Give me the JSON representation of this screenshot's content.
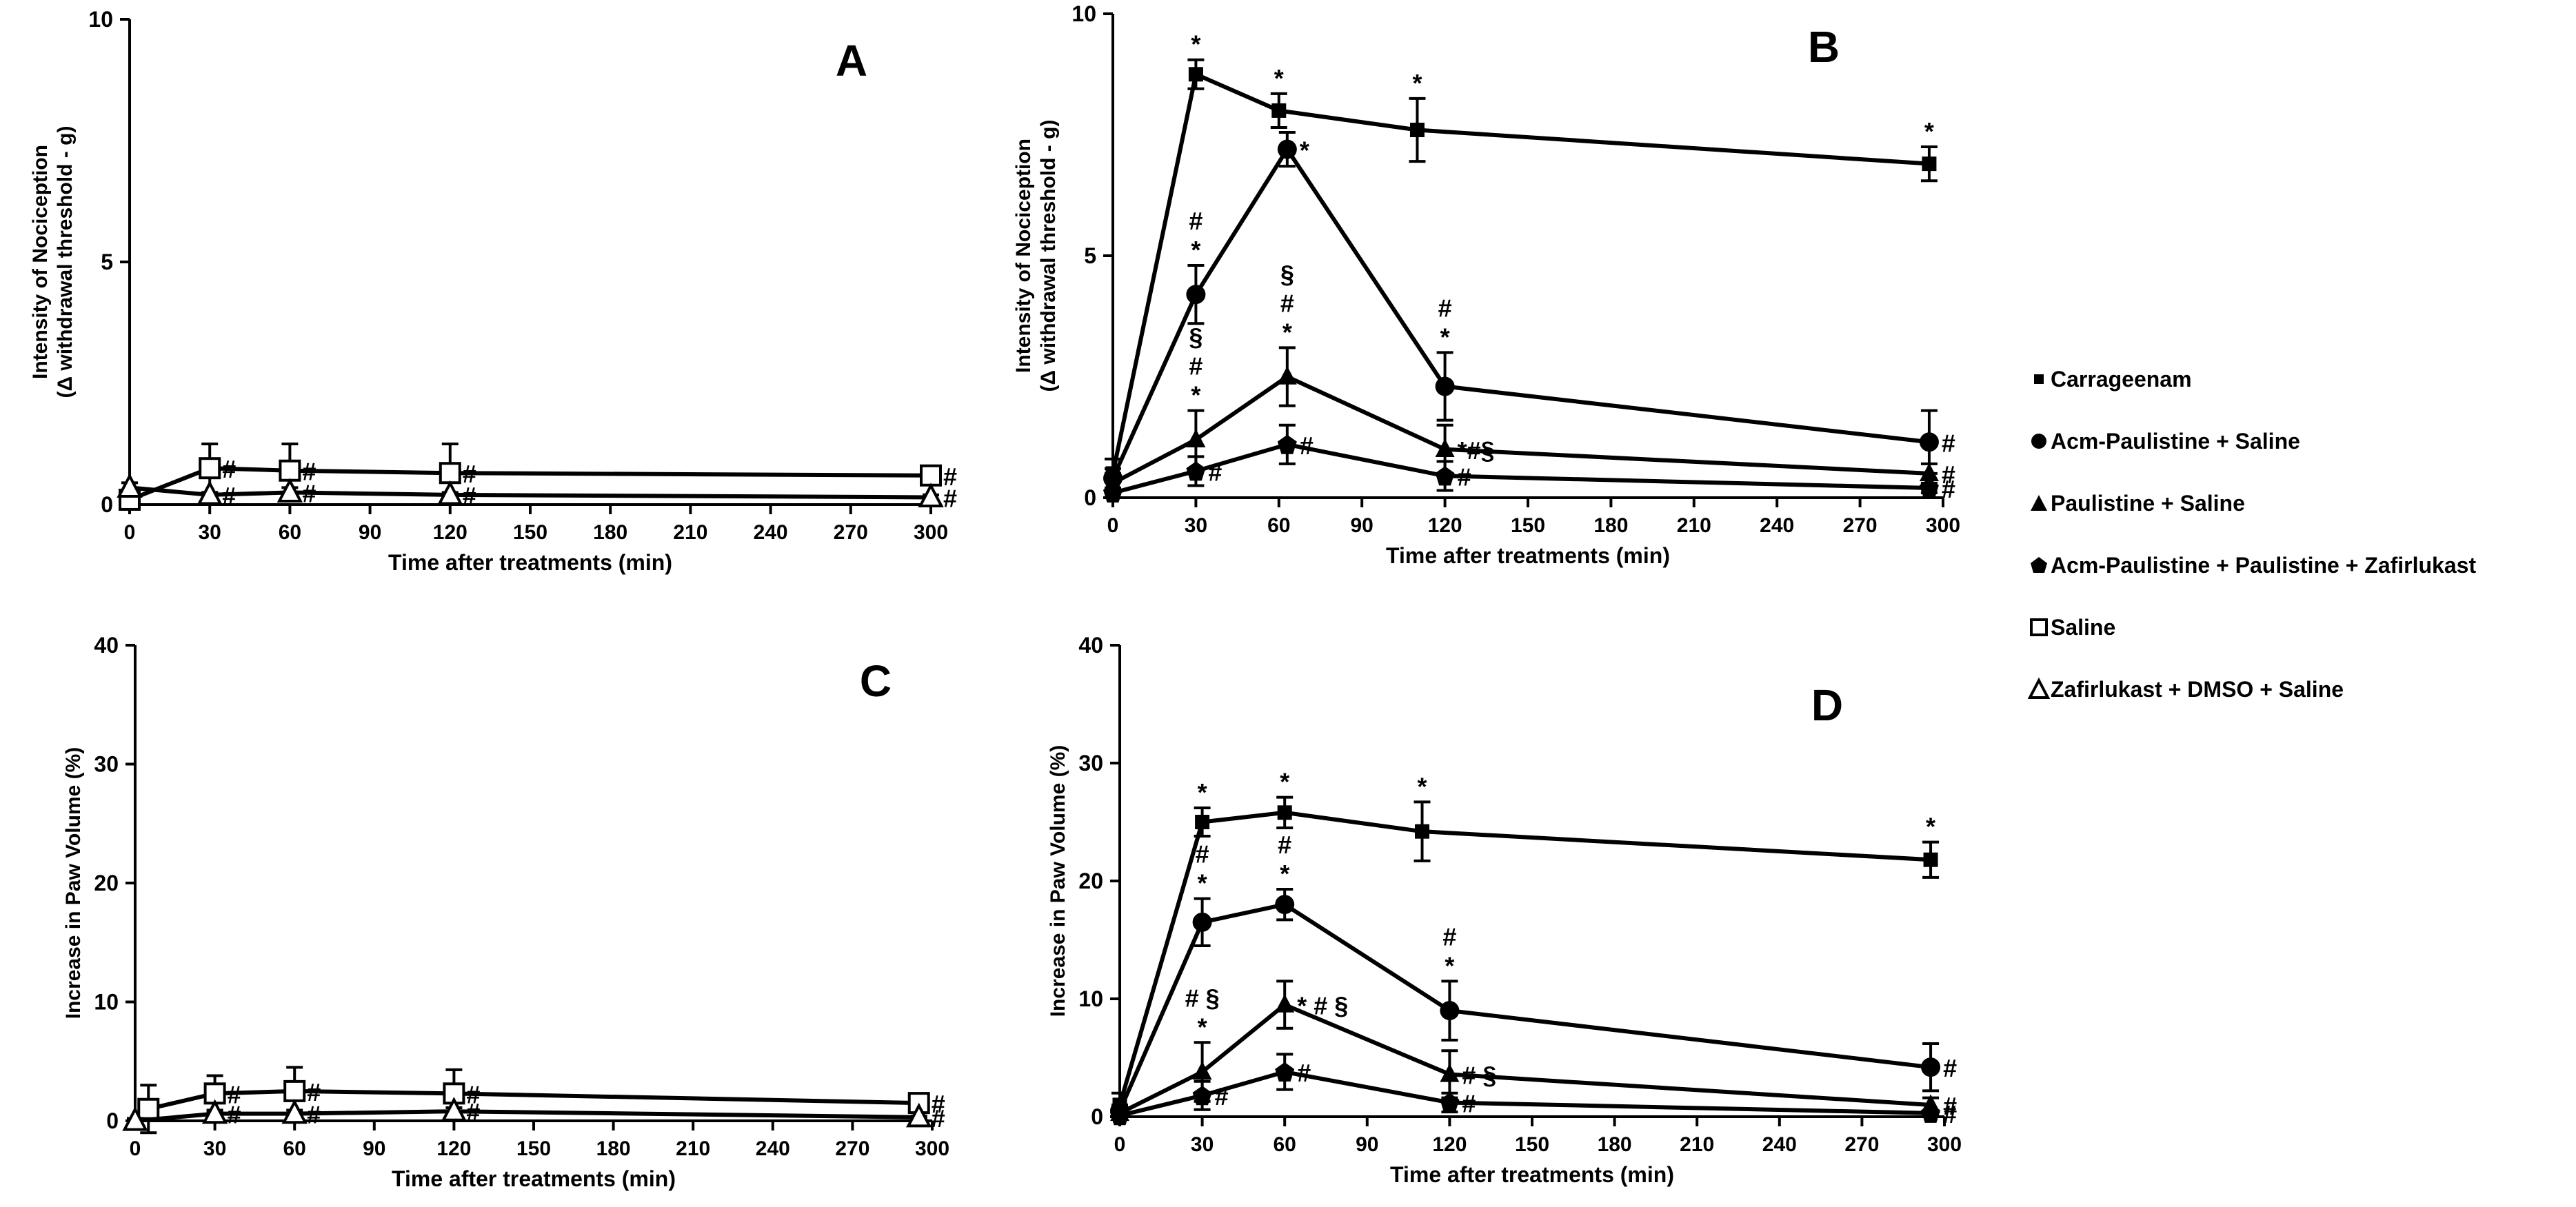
{
  "legend": {
    "series": [
      {
        "name": "Carrageenam",
        "marker": "square-filled"
      },
      {
        "name": "Acm-Paulistine + Saline",
        "marker": "circle-filled"
      },
      {
        "name": "Paulistine + Saline",
        "marker": "triangle-filled"
      },
      {
        "name": "Acm-Paulistine + Paulistine + Zafirlukast",
        "marker": "pentagon-filled"
      },
      {
        "name": "Saline",
        "marker": "square-open"
      },
      {
        "name": "Zafirlukast + DMSO + Saline",
        "marker": "triangle-open"
      }
    ]
  },
  "chart_data": [
    {
      "panel": "A",
      "type": "line",
      "xlabel": "Time after treatments (min)",
      "ylabel_lines": [
        "Intensity of Nociception",
        "(Δ withdrawal threshold - g)"
      ],
      "xlim": [
        0,
        300
      ],
      "ylim": [
        0,
        10
      ],
      "xticks": [
        "0",
        "30",
        "60",
        "90",
        "120",
        "150",
        "180",
        "210",
        "240",
        "270",
        "300"
      ],
      "yticks": [
        "0",
        "5",
        "10"
      ],
      "series": [
        {
          "name": "Saline",
          "marker": "square-open",
          "x": [
            0,
            30,
            60,
            120,
            300
          ],
          "y": [
            0.1,
            0.75,
            0.7,
            0.65,
            0.6
          ],
          "err": [
            0.1,
            0.5,
            0.55,
            0.6,
            0.1
          ],
          "labels": [
            "",
            "#",
            "#",
            "#",
            "#"
          ]
        },
        {
          "name": "Zafirlukast + DMSO + Saline",
          "marker": "triangle-open",
          "x": [
            0,
            30,
            60,
            120,
            300
          ],
          "y": [
            0.35,
            0.2,
            0.25,
            0.2,
            0.15
          ],
          "err": [
            0.1,
            0.05,
            0.1,
            0.05,
            0.05
          ],
          "labels": [
            "",
            "#",
            "#",
            "#",
            "#"
          ]
        }
      ]
    },
    {
      "panel": "B",
      "type": "line",
      "xlabel": "Time after treatments (min)",
      "ylabel_lines": [
        "Intensity of Nociception",
        "(Δ withdrawal threshold - g)"
      ],
      "xlim": [
        0,
        300
      ],
      "ylim": [
        0,
        10
      ],
      "xticks": [
        "0",
        "30",
        "60",
        "90",
        "120",
        "150",
        "180",
        "210",
        "240",
        "270",
        "300"
      ],
      "yticks": [
        "0",
        "5",
        "10"
      ],
      "series": [
        {
          "name": "Carrageenam",
          "marker": "square-filled",
          "x": [
            0,
            30,
            60,
            110,
            295
          ],
          "y": [
            0.5,
            8.75,
            8.0,
            7.6,
            6.9
          ],
          "err": [
            0.3,
            0.3,
            0.35,
            0.65,
            0.35
          ],
          "labels": [
            "",
            "*",
            "*",
            "*",
            "*"
          ]
        },
        {
          "name": "Acm-Paulistine + Saline",
          "marker": "circle-filled",
          "x": [
            0,
            30,
            63,
            120,
            295
          ],
          "y": [
            0.4,
            4.2,
            7.2,
            2.3,
            1.15
          ],
          "err": [
            0.2,
            0.6,
            0.35,
            0.7,
            0.65
          ],
          "labels": [
            "",
            "#\n*",
            "*",
            "#\n*",
            "#"
          ]
        },
        {
          "name": "Paulistine + Saline",
          "marker": "triangle-filled",
          "x": [
            0,
            30,
            63,
            120,
            295
          ],
          "y": [
            0.3,
            1.2,
            2.5,
            1.0,
            0.5
          ],
          "err": [
            0.2,
            0.6,
            0.6,
            0.5,
            0.2
          ],
          "labels": [
            "",
            "§\n#\n*",
            "§\n#\n*",
            "*#§",
            "#"
          ]
        },
        {
          "name": "Acm-Paulistine + Paulistine + Zafirlukast",
          "marker": "pentagon-filled",
          "x": [
            0,
            30,
            63,
            120,
            295
          ],
          "y": [
            0.1,
            0.55,
            1.1,
            0.45,
            0.2
          ],
          "err": [
            0.1,
            0.3,
            0.4,
            0.3,
            0.1
          ],
          "labels": [
            "",
            "#",
            "#",
            "#",
            "#"
          ]
        }
      ]
    },
    {
      "panel": "C",
      "type": "line",
      "xlabel": "Time after treatments (min)",
      "ylabel_lines": [
        "Increase in Paw Volume (%)"
      ],
      "xlim": [
        0,
        300
      ],
      "ylim": [
        0,
        40
      ],
      "xticks": [
        "0",
        "30",
        "60",
        "90",
        "120",
        "150",
        "180",
        "210",
        "240",
        "270",
        "300"
      ],
      "yticks": [
        "0",
        "10",
        "20",
        "30",
        "40"
      ],
      "series": [
        {
          "name": "Saline",
          "marker": "square-open",
          "x": [
            5,
            30,
            60,
            120,
            295
          ],
          "y": [
            1.0,
            2.3,
            2.5,
            2.3,
            1.5
          ],
          "err": [
            2.0,
            1.5,
            2.0,
            2.0,
            0.5
          ],
          "labels": [
            "",
            "#",
            "#",
            "#",
            "#"
          ]
        },
        {
          "name": "Zafirlukast + DMSO + Saline",
          "marker": "triangle-open",
          "x": [
            0,
            30,
            60,
            120,
            295
          ],
          "y": [
            0.0,
            0.6,
            0.6,
            0.8,
            0.3
          ],
          "err": [
            0.2,
            0.3,
            0.3,
            0.3,
            0.1
          ],
          "labels": [
            "",
            "#",
            "#",
            "#",
            "#"
          ]
        }
      ]
    },
    {
      "panel": "D",
      "type": "line",
      "xlabel": "Time after treatments (min)",
      "ylabel_lines": [
        "Increase in Paw Volume (%)"
      ],
      "xlim": [
        0,
        300
      ],
      "ylim": [
        0,
        40
      ],
      "xticks": [
        "0",
        "30",
        "60",
        "90",
        "120",
        "150",
        "180",
        "210",
        "240",
        "270",
        "300"
      ],
      "yticks": [
        "0",
        "10",
        "20",
        "30",
        "40"
      ],
      "series": [
        {
          "name": "Carrageenam",
          "marker": "square-filled",
          "x": [
            0,
            30,
            60,
            110,
            295
          ],
          "y": [
            1.0,
            25.0,
            25.8,
            24.2,
            21.8
          ],
          "err": [
            1.0,
            1.2,
            1.3,
            2.5,
            1.5
          ],
          "labels": [
            "",
            "*",
            "*",
            "*",
            "*"
          ]
        },
        {
          "name": "Acm-Paulistine + Saline",
          "marker": "circle-filled",
          "x": [
            0,
            30,
            60,
            120,
            295
          ],
          "y": [
            0.5,
            16.5,
            18.0,
            9.0,
            4.2
          ],
          "err": [
            0.5,
            2.0,
            1.3,
            2.5,
            2.0
          ],
          "labels": [
            "",
            "#\n*",
            "#\n*",
            "#\n*",
            "#"
          ]
        },
        {
          "name": "Paulistine + Saline",
          "marker": "triangle-filled",
          "x": [
            0,
            30,
            60,
            120,
            295
          ],
          "y": [
            0.3,
            3.8,
            9.5,
            3.6,
            1.0
          ],
          "err": [
            0.3,
            2.5,
            2.0,
            2.0,
            0.6
          ],
          "labels": [
            "",
            "# §\n*",
            "* # §",
            "# §",
            "#"
          ]
        },
        {
          "name": "Acm-Paulistine + Paulistine + Zafirlukast",
          "marker": "pentagon-filled",
          "x": [
            0,
            30,
            60,
            120,
            295
          ],
          "y": [
            0.1,
            1.8,
            3.8,
            1.2,
            0.3
          ],
          "err": [
            0.1,
            1.2,
            1.5,
            0.8,
            0.2
          ],
          "labels": [
            "",
            "#",
            "#",
            "#",
            "#"
          ]
        }
      ]
    }
  ]
}
